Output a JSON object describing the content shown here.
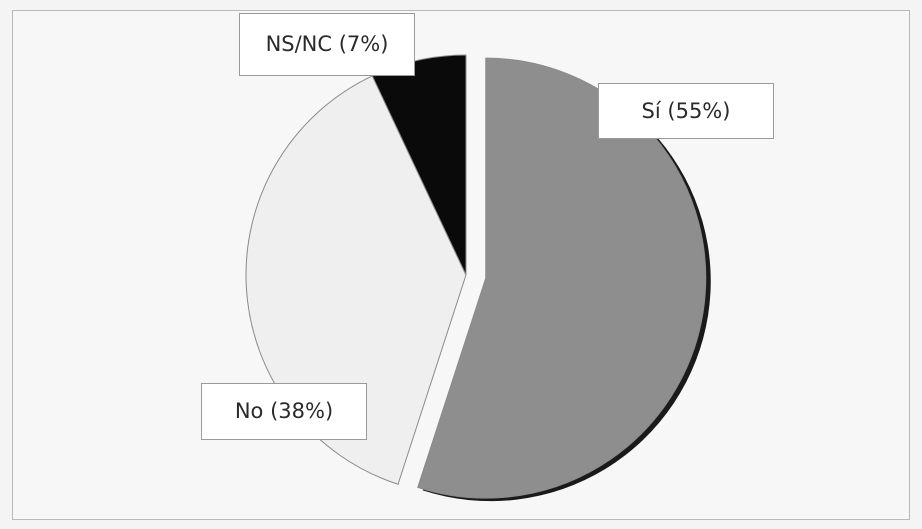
{
  "chart_data": {
    "type": "pie",
    "title": "",
    "slices": [
      {
        "label": "Sí (55%)",
        "value": 55,
        "color": "#8e8e8e",
        "exploded": true
      },
      {
        "label": "No (38%)",
        "value": 38,
        "color": "#efefef",
        "exploded": false
      },
      {
        "label": "NS/NC (7%)",
        "value": 7,
        "color": "#0a0a0a",
        "exploded": false
      }
    ],
    "start_angle_deg": 0,
    "direction": "clockwise",
    "legend": "none",
    "labels": "boxed callouts"
  }
}
